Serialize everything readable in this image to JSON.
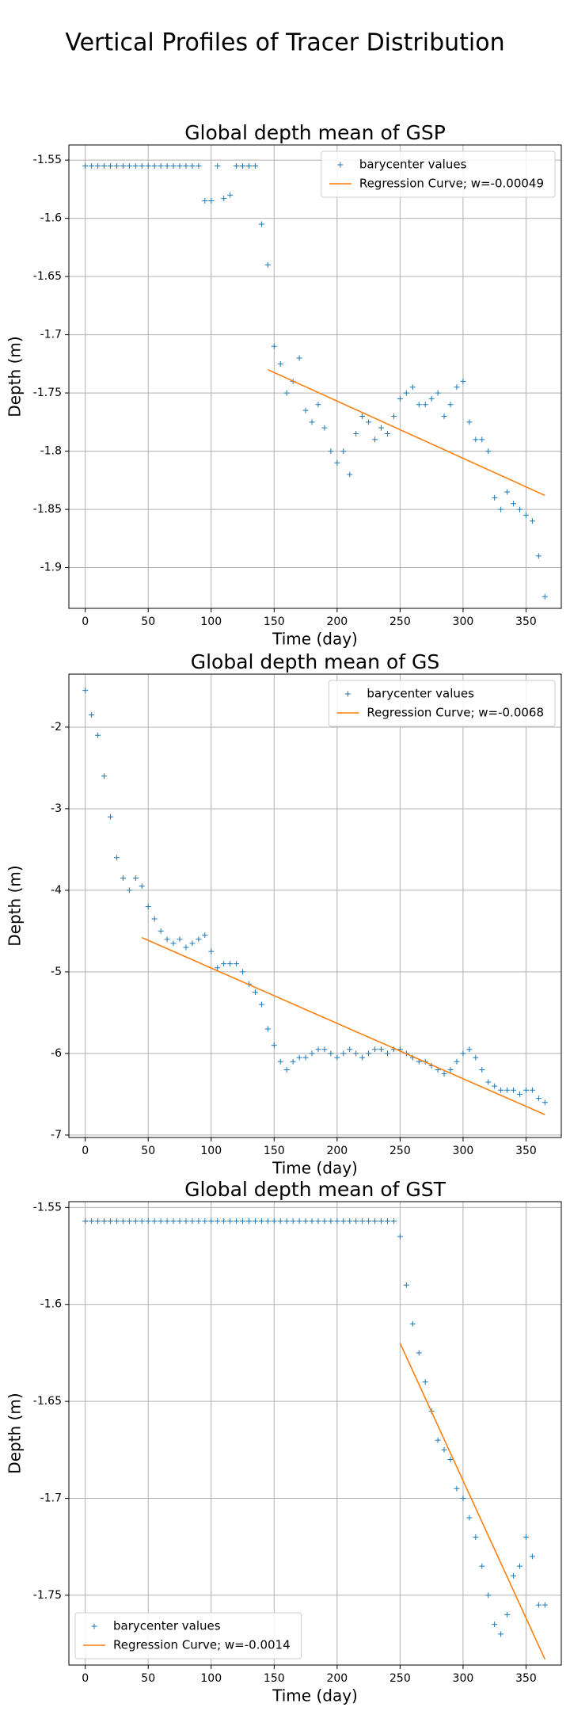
{
  "title": "Vertical Profiles of Tracer Distribution",
  "chart_data": [
    {
      "type": "scatter",
      "title": "Global depth mean of GSP",
      "xlabel": "Time (day)",
      "ylabel": "Depth (m)",
      "grid": true,
      "legend": "upper right",
      "xlim": [
        -13,
        378
      ],
      "xticks": [
        0,
        50,
        100,
        150,
        200,
        250,
        300,
        350
      ],
      "ylim": [
        -1.935,
        -1.537
      ],
      "yticks": [
        -1.55,
        -1.6,
        -1.65,
        -1.7,
        -1.75,
        -1.8,
        -1.85,
        -1.9
      ],
      "x": [
        0,
        5,
        10,
        15,
        20,
        25,
        30,
        35,
        40,
        45,
        50,
        55,
        60,
        65,
        70,
        75,
        80,
        85,
        90,
        95,
        100,
        105,
        110,
        115,
        120,
        125,
        130,
        135,
        140,
        145,
        150,
        155,
        160,
        165,
        170,
        175,
        180,
        185,
        190,
        195,
        200,
        205,
        210,
        215,
        220,
        225,
        230,
        235,
        240,
        245,
        250,
        255,
        260,
        265,
        270,
        275,
        280,
        285,
        290,
        295,
        300,
        305,
        310,
        315,
        320,
        325,
        330,
        335,
        340,
        345,
        350,
        355,
        360,
        365
      ],
      "series": [
        {
          "name": "barycenter values",
          "color": "#1f77b4",
          "marker": "+",
          "values": [
            -1.555,
            -1.555,
            -1.555,
            -1.555,
            -1.555,
            -1.555,
            -1.555,
            -1.555,
            -1.555,
            -1.555,
            -1.555,
            -1.555,
            -1.555,
            -1.555,
            -1.555,
            -1.555,
            -1.555,
            -1.555,
            -1.555,
            -1.585,
            -1.585,
            -1.555,
            -1.583,
            -1.58,
            -1.555,
            -1.555,
            -1.555,
            -1.555,
            -1.605,
            -1.64,
            -1.71,
            -1.725,
            -1.75,
            -1.74,
            -1.72,
            -1.765,
            -1.775,
            -1.76,
            -1.78,
            -1.8,
            -1.81,
            -1.8,
            -1.82,
            -1.785,
            -1.77,
            -1.775,
            -1.79,
            -1.78,
            -1.785,
            -1.77,
            -1.755,
            -1.75,
            -1.745,
            -1.76,
            -1.76,
            -1.755,
            -1.75,
            -1.77,
            -1.76,
            -1.745,
            -1.74,
            -1.775,
            -1.79,
            -1.79,
            -1.8,
            -1.84,
            -1.85,
            -1.835,
            -1.845,
            -1.85,
            -1.855,
            -1.86,
            -1.89,
            -1.925
          ]
        },
        {
          "name": "Regression Curve; w=-0.00049",
          "color": "#ff7f0e",
          "marker": "line",
          "x": [
            145,
            365
          ],
          "values": [
            -1.73,
            -1.838
          ]
        }
      ]
    },
    {
      "type": "scatter",
      "title": "Global depth mean of GS",
      "xlabel": "Time (day)",
      "ylabel": "Depth (m)",
      "grid": true,
      "legend": "upper right",
      "xlim": [
        -13,
        378
      ],
      "xticks": [
        0,
        50,
        100,
        150,
        200,
        250,
        300,
        350
      ],
      "ylim": [
        -7.03,
        -1.35
      ],
      "yticks": [
        -2,
        -3,
        -4,
        -5,
        -6,
        -7
      ],
      "x": [
        0,
        5,
        10,
        15,
        20,
        25,
        30,
        35,
        40,
        45,
        50,
        55,
        60,
        65,
        70,
        75,
        80,
        85,
        90,
        95,
        100,
        105,
        110,
        115,
        120,
        125,
        130,
        135,
        140,
        145,
        150,
        155,
        160,
        165,
        170,
        175,
        180,
        185,
        190,
        195,
        200,
        205,
        210,
        215,
        220,
        225,
        230,
        235,
        240,
        245,
        250,
        255,
        260,
        265,
        270,
        275,
        280,
        285,
        290,
        295,
        300,
        305,
        310,
        315,
        320,
        325,
        330,
        335,
        340,
        345,
        350,
        355,
        360,
        365
      ],
      "series": [
        {
          "name": "barycenter values",
          "color": "#1f77b4",
          "marker": "+",
          "values": [
            -1.55,
            -1.85,
            -2.1,
            -2.6,
            -3.1,
            -3.6,
            -3.85,
            -4.0,
            -3.85,
            -3.95,
            -4.2,
            -4.35,
            -4.5,
            -4.6,
            -4.65,
            -4.6,
            -4.7,
            -4.65,
            -4.6,
            -4.55,
            -4.75,
            -4.95,
            -4.9,
            -4.9,
            -4.9,
            -5.0,
            -5.15,
            -5.25,
            -5.4,
            -5.7,
            -5.9,
            -6.1,
            -6.2,
            -6.1,
            -6.05,
            -6.05,
            -6.0,
            -5.95,
            -5.95,
            -6.0,
            -6.05,
            -6.0,
            -5.95,
            -6.0,
            -6.05,
            -6.0,
            -5.95,
            -5.95,
            -6.0,
            -5.95,
            -5.95,
            -6.0,
            -6.05,
            -6.1,
            -6.1,
            -6.15,
            -6.2,
            -6.25,
            -6.2,
            -6.1,
            -6.0,
            -5.95,
            -6.05,
            -6.2,
            -6.35,
            -6.4,
            -6.45,
            -6.45,
            -6.45,
            -6.5,
            -6.45,
            -6.45,
            -6.55,
            -6.6
          ]
        },
        {
          "name": "Regression Curve; w=-0.0068",
          "color": "#ff7f0e",
          "marker": "line",
          "x": [
            45,
            365
          ],
          "values": [
            -4.58,
            -6.75
          ]
        }
      ]
    },
    {
      "type": "scatter",
      "title": "Global depth mean of GST",
      "xlabel": "Time (day)",
      "ylabel": "Depth (m)",
      "grid": true,
      "legend": "lower left",
      "xlim": [
        -13,
        378
      ],
      "xticks": [
        0,
        50,
        100,
        150,
        200,
        250,
        300,
        350
      ],
      "ylim": [
        -1.786,
        -1.547
      ],
      "yticks": [
        -1.55,
        -1.6,
        -1.65,
        -1.7,
        -1.75
      ],
      "x": [
        0,
        5,
        10,
        15,
        20,
        25,
        30,
        35,
        40,
        45,
        50,
        55,
        60,
        65,
        70,
        75,
        80,
        85,
        90,
        95,
        100,
        105,
        110,
        115,
        120,
        125,
        130,
        135,
        140,
        145,
        150,
        155,
        160,
        165,
        170,
        175,
        180,
        185,
        190,
        195,
        200,
        205,
        210,
        215,
        220,
        225,
        230,
        235,
        240,
        245,
        250,
        255,
        260,
        265,
        270,
        275,
        280,
        285,
        290,
        295,
        300,
        305,
        310,
        315,
        320,
        325,
        330,
        335,
        340,
        345,
        350,
        355,
        360,
        365
      ],
      "series": [
        {
          "name": "barycenter values",
          "color": "#1f77b4",
          "marker": "+",
          "values": [
            -1.557,
            -1.557,
            -1.557,
            -1.557,
            -1.557,
            -1.557,
            -1.557,
            -1.557,
            -1.557,
            -1.557,
            -1.557,
            -1.557,
            -1.557,
            -1.557,
            -1.557,
            -1.557,
            -1.557,
            -1.557,
            -1.557,
            -1.557,
            -1.557,
            -1.557,
            -1.557,
            -1.557,
            -1.557,
            -1.557,
            -1.557,
            -1.557,
            -1.557,
            -1.557,
            -1.557,
            -1.557,
            -1.557,
            -1.557,
            -1.557,
            -1.557,
            -1.557,
            -1.557,
            -1.557,
            -1.557,
            -1.557,
            -1.557,
            -1.557,
            -1.557,
            -1.557,
            -1.557,
            -1.557,
            -1.557,
            -1.557,
            -1.557,
            -1.565,
            -1.59,
            -1.61,
            -1.625,
            -1.64,
            -1.655,
            -1.67,
            -1.675,
            -1.68,
            -1.695,
            -1.7,
            -1.71,
            -1.72,
            -1.735,
            -1.75,
            -1.765,
            -1.77,
            -1.76,
            -1.74,
            -1.735,
            -1.72,
            -1.73,
            -1.755,
            -1.755
          ]
        },
        {
          "name": "Regression Curve; w=-0.0014",
          "color": "#ff7f0e",
          "marker": "line",
          "x": [
            250,
            365
          ],
          "values": [
            -1.62,
            -1.783
          ]
        }
      ]
    }
  ]
}
